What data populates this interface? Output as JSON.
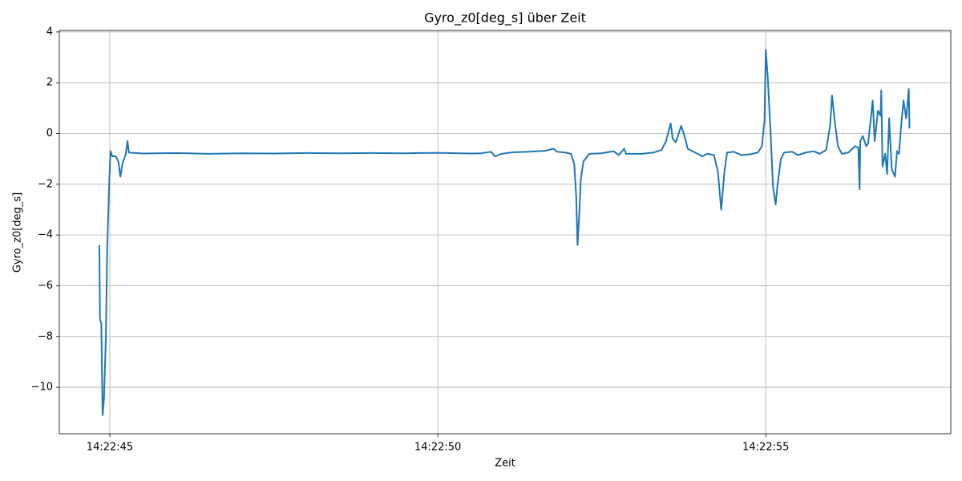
{
  "chart_data": {
    "type": "line",
    "title": "Gyro_z0[deg_s] über Zeit",
    "xlabel": "Zeit",
    "ylabel": "Gyro_z0[deg_s]",
    "color": "#1f77b4",
    "grid": true,
    "xlim": [
      -0.77,
      12.82
    ],
    "ylim": [
      -11.83,
      4.06
    ],
    "xticks": [
      {
        "value": 0,
        "label": "14:22:45"
      },
      {
        "value": 5,
        "label": "14:22:50"
      },
      {
        "value": 10,
        "label": "14:22:55"
      }
    ],
    "yticks": [
      {
        "value": -10,
        "label": "−10"
      },
      {
        "value": -8,
        "label": "−8"
      },
      {
        "value": -6,
        "label": "−6"
      },
      {
        "value": -4,
        "label": "−4"
      },
      {
        "value": -2,
        "label": "−2"
      },
      0,
      2,
      4
    ],
    "x": [
      -0.16,
      -0.15,
      -0.13,
      -0.11,
      -0.09,
      -0.06,
      -0.04,
      -0.01,
      0.01,
      0.04,
      0.09,
      0.13,
      0.16,
      0.2,
      0.24,
      0.27,
      0.29,
      0.5,
      1.0,
      1.5,
      2.0,
      2.5,
      3.0,
      3.5,
      4.0,
      4.5,
      5.0,
      5.5,
      5.66,
      5.81,
      5.87,
      5.97,
      6.15,
      6.39,
      6.64,
      6.76,
      6.82,
      6.94,
      7.03,
      7.08,
      7.11,
      7.13,
      7.16,
      7.18,
      7.22,
      7.31,
      7.49,
      7.68,
      7.76,
      7.84,
      7.87,
      8.11,
      8.29,
      8.41,
      8.48,
      8.55,
      8.58,
      8.63,
      8.71,
      8.75,
      8.81,
      8.96,
      9.03,
      9.11,
      9.21,
      9.27,
      9.32,
      9.37,
      9.41,
      9.51,
      9.63,
      9.76,
      9.88,
      9.94,
      9.98,
      10.0,
      10.03,
      10.07,
      10.11,
      10.15,
      10.18,
      10.23,
      10.28,
      10.4,
      10.49,
      10.61,
      10.73,
      10.82,
      10.92,
      10.98,
      11.01,
      11.05,
      11.1,
      11.16,
      11.26,
      11.36,
      11.41,
      11.43,
      11.44,
      11.48,
      11.53,
      11.56,
      11.63,
      11.66,
      11.71,
      11.75,
      11.76,
      11.78,
      11.82,
      11.85,
      11.88,
      11.92,
      11.97,
      12.0,
      12.03,
      12.07,
      12.1,
      12.14,
      12.18,
      12.19
    ],
    "values": [
      -4.4,
      -7.3,
      -7.5,
      -11.1,
      -10.5,
      -8,
      -4.5,
      -2,
      -0.7,
      -0.9,
      -0.9,
      -1.1,
      -1.7,
      -1.1,
      -0.85,
      -0.3,
      -0.75,
      -0.79,
      -0.77,
      -0.8,
      -0.78,
      -0.79,
      -0.77,
      -0.78,
      -0.77,
      -0.78,
      -0.76,
      -0.79,
      -0.78,
      -0.72,
      -0.9,
      -0.8,
      -0.74,
      -0.72,
      -0.68,
      -0.6,
      -0.72,
      -0.75,
      -0.8,
      -1.2,
      -2.5,
      -4.4,
      -3,
      -1.8,
      -1.1,
      -0.8,
      -0.78,
      -0.7,
      -0.85,
      -0.6,
      -0.8,
      -0.8,
      -0.75,
      -0.65,
      -0.3,
      0.4,
      -0.2,
      -0.35,
      0.3,
      0,
      -0.6,
      -0.8,
      -0.9,
      -0.8,
      -0.85,
      -1.5,
      -3,
      -1.5,
      -0.75,
      -0.72,
      -0.85,
      -0.82,
      -0.75,
      -0.5,
      0.5,
      3.3,
      2.2,
      0.2,
      -2.1,
      -2.8,
      -2,
      -1,
      -0.75,
      -0.72,
      -0.85,
      -0.75,
      -0.7,
      -0.8,
      -0.65,
      0.3,
      1.5,
      0.5,
      -0.5,
      -0.8,
      -0.75,
      -0.5,
      -0.55,
      -2.2,
      -0.3,
      -0.1,
      -0.5,
      -0.4,
      1.3,
      -0.3,
      0.9,
      0.7,
      1.7,
      -1.3,
      -0.8,
      -1.6,
      0.6,
      -1.4,
      -1.7,
      -0.7,
      -0.8,
      0.5,
      1.3,
      0.6,
      1.75,
      0.2
    ]
  }
}
